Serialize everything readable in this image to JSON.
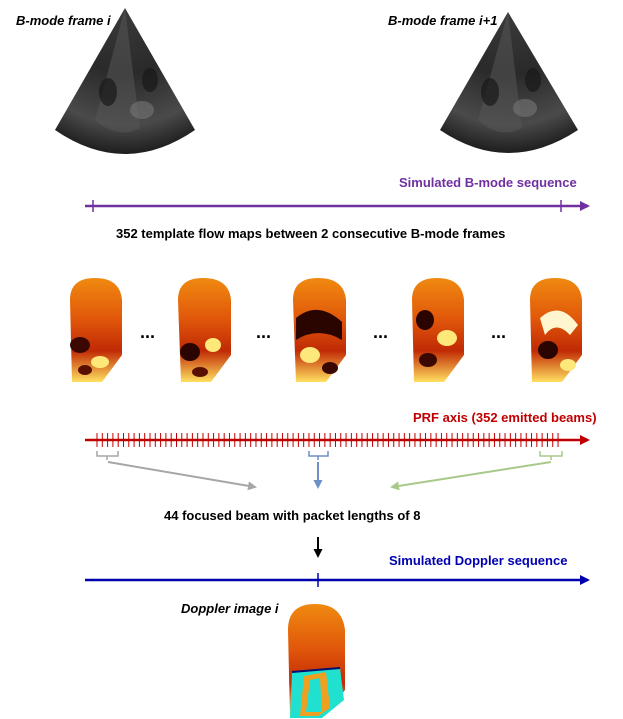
{
  "labels": {
    "bmode_frame_i": "B-mode frame i",
    "bmode_frame_i1": "B-mode frame i+1",
    "simulated_bmode_sequence": "Simulated B-mode sequence",
    "template_flow_maps": "352 template flow maps between 2 consecutive B-mode frames",
    "ellipsis": "...",
    "prf_axis": "PRF axis (352 emitted beams)",
    "focused_beam": "44 focused beam with packet lengths of 8",
    "simulated_doppler_sequence": "Simulated Doppler sequence",
    "doppler_image": "Doppler image i"
  },
  "colors": {
    "bmode_axis": "#7030a0",
    "prf_axis": "#c00000",
    "doppler_axis": "#0000b0",
    "grey_arrow": "#a6a6a6",
    "blue_arrow": "#6f8fc8",
    "green_arrow": "#a9c98a",
    "doppler_cyan": "#20e0d0"
  },
  "prf_beam_count": 352,
  "flow_map_count_shown": 5
}
